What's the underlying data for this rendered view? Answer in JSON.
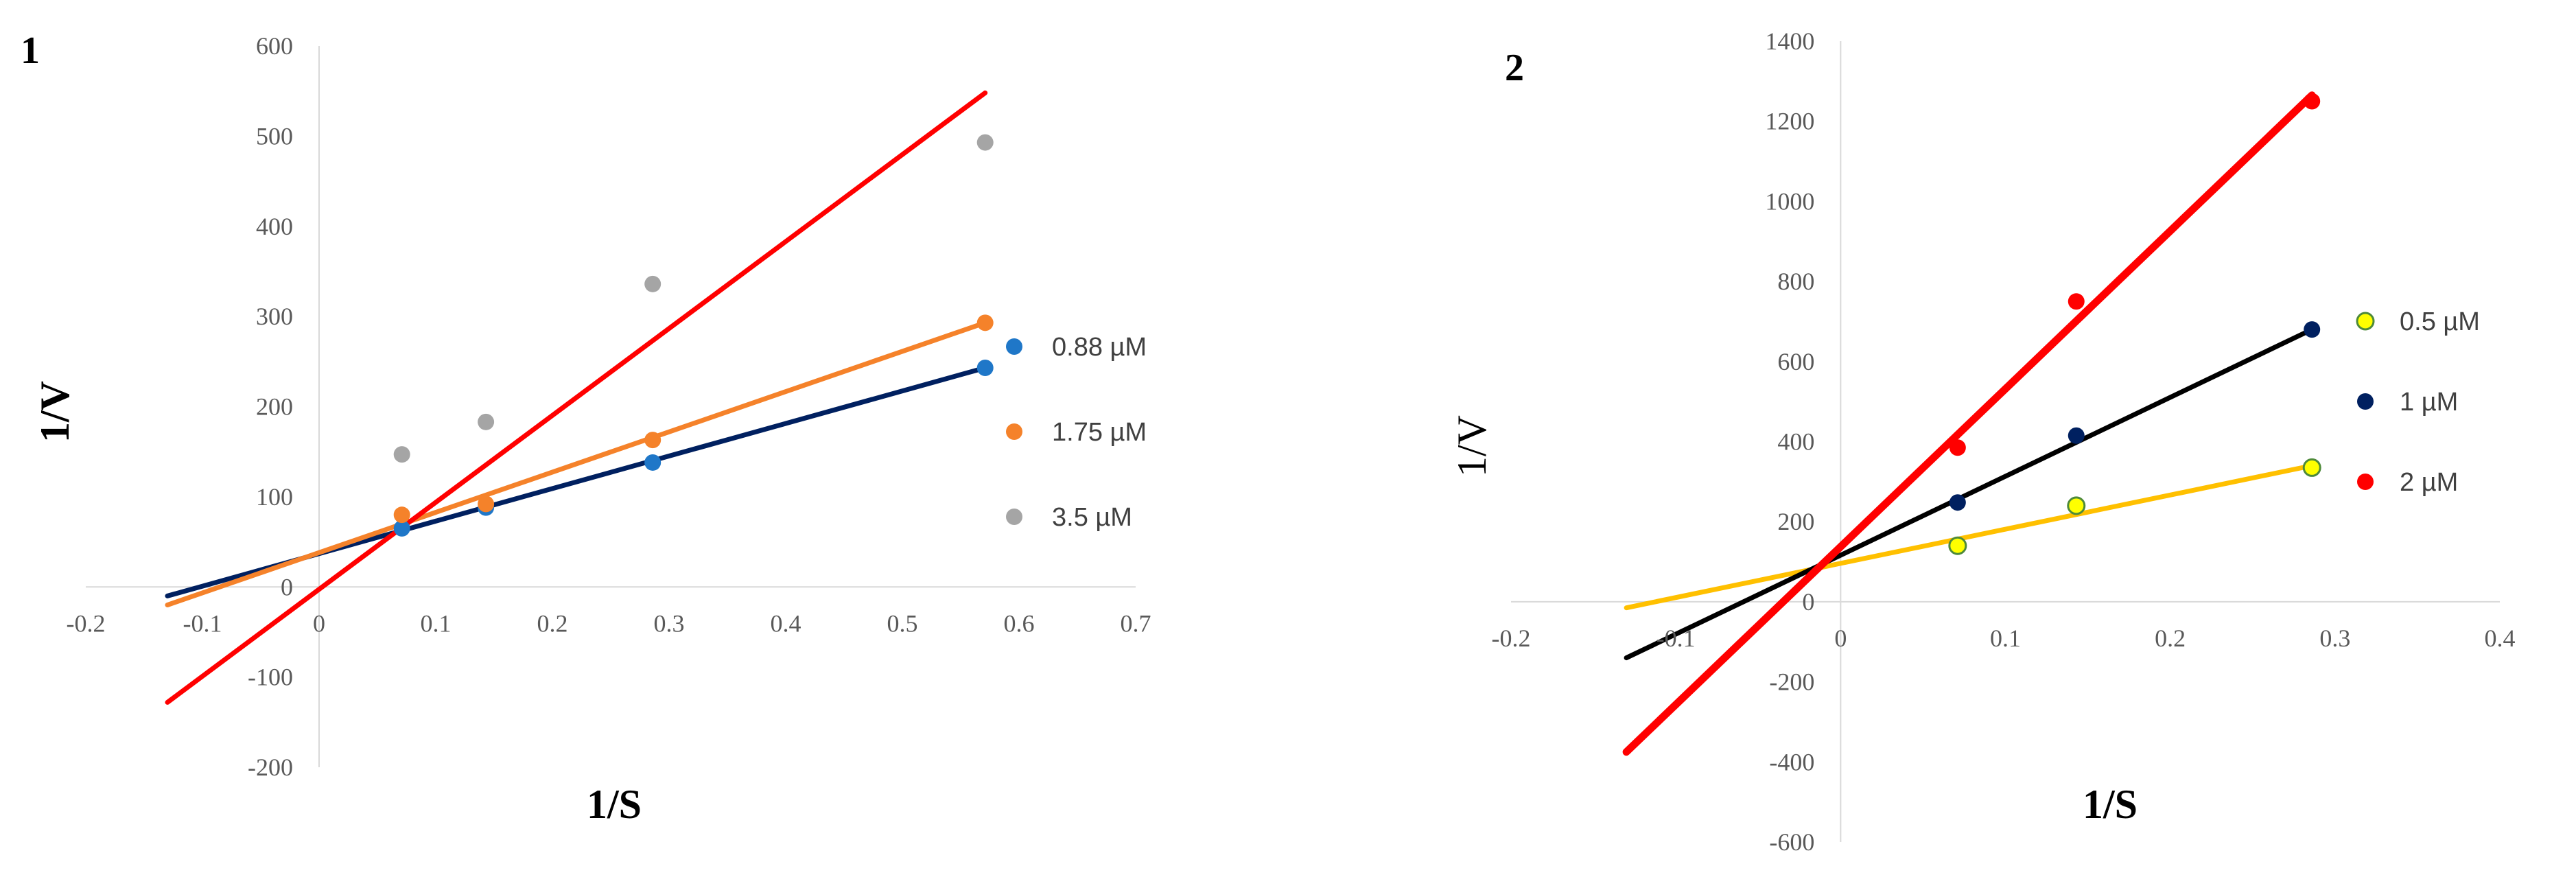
{
  "chart_data": [
    {
      "type": "scatter",
      "panel_label": "1",
      "xlabel": "1/S",
      "ylabel": "1/V",
      "xlim": [
        -0.2,
        0.7
      ],
      "ylim": [
        -200,
        600
      ],
      "x_ticks": [
        "-0.2",
        "-0.1",
        "0",
        "0.1",
        "0.2",
        "0.3",
        "0.4",
        "0.5",
        "0.6",
        "0.7"
      ],
      "y_ticks": [
        "-200",
        "-100",
        "0",
        "100",
        "200",
        "300",
        "400",
        "500",
        "600"
      ],
      "legend_position": "right",
      "series": [
        {
          "name": "0.88 µM",
          "marker_color": "#1f77c8",
          "line_color": "#002060",
          "x": [
            0.071,
            0.143,
            0.286,
            0.571
          ],
          "y": [
            65,
            88,
            138,
            243
          ],
          "trendline": {
            "x": [
              -0.13,
              0.571
            ],
            "y": [
              -10,
              243
            ]
          }
        },
        {
          "name": "1.75 µM",
          "marker_color": "#f5822a",
          "line_color": "#f5822a",
          "x": [
            0.071,
            0.143,
            0.286,
            0.571
          ],
          "y": [
            80,
            92,
            163,
            293
          ],
          "trendline": {
            "x": [
              -0.13,
              0.571
            ],
            "y": [
              -20,
              293
            ]
          }
        },
        {
          "name": "3.5 µM",
          "marker_color": "#a5a5a5",
          "line_color": "#ff0000",
          "x": [
            0.071,
            0.143,
            0.286,
            0.571
          ],
          "y": [
            147,
            183,
            336,
            493
          ],
          "trendline": {
            "x": [
              -0.13,
              0.571
            ],
            "y": [
              -128,
              548
            ]
          }
        }
      ]
    },
    {
      "type": "scatter",
      "panel_label": "2",
      "xlabel": "1/S",
      "ylabel": "1/V",
      "xlim": [
        -0.2,
        0.4
      ],
      "ylim": [
        -600,
        1400
      ],
      "x_ticks": [
        "-0.2",
        "-0.1",
        "0",
        "0.1",
        "0.2",
        "0.3",
        "0.4"
      ],
      "y_ticks": [
        "-600",
        "-400",
        "-200",
        "0",
        "200",
        "400",
        "600",
        "800",
        "1000",
        "1200",
        "1400"
      ],
      "legend_position": "right",
      "series": [
        {
          "name": "0.5 µM",
          "marker_color": "#ffff00",
          "marker_edge": "#4e8a3a",
          "line_color": "#ffc000",
          "x": [
            0.071,
            0.143,
            0.286
          ],
          "y": [
            140,
            240,
            335
          ],
          "trendline": {
            "x": [
              -0.13,
              0.286
            ],
            "y": [
              -15,
              340
            ]
          }
        },
        {
          "name": "1 µM",
          "marker_color": "#002060",
          "line_color": "#000000",
          "x": [
            0.071,
            0.143,
            0.286
          ],
          "y": [
            248,
            415,
            680
          ],
          "trendline": {
            "x": [
              -0.13,
              0.286
            ],
            "y": [
              -140,
              680
            ]
          }
        },
        {
          "name": "2 µM",
          "marker_color": "#ff0000",
          "line_color": "#ff0000",
          "x": [
            0.071,
            0.143,
            0.286
          ],
          "y": [
            385,
            750,
            1250
          ],
          "trendline": {
            "x": [
              -0.13,
              0.286
            ],
            "y": [
              -375,
              1265
            ]
          }
        }
      ]
    }
  ]
}
